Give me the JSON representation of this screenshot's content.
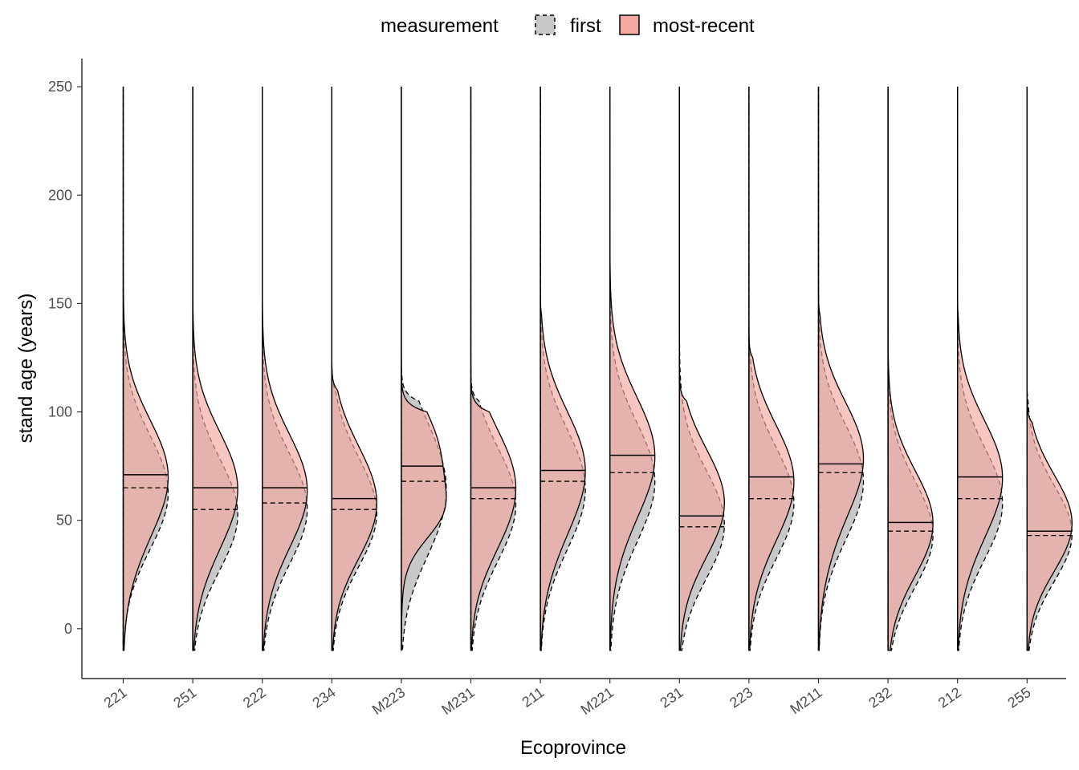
{
  "chart_data": {
    "type": "violin",
    "xlabel": "Ecoprovince",
    "ylabel": "stand age (years)",
    "ylim": [
      -23,
      263
    ],
    "y_ticks": [
      0,
      50,
      100,
      150,
      200,
      250
    ],
    "legend": {
      "title": "measurement",
      "placement": "top",
      "entries": [
        {
          "label": "first",
          "fill": "#c8c8c8",
          "linetype": "dashed"
        },
        {
          "label": "most-recent",
          "fill": "#f4a8a0",
          "linetype": "solid"
        }
      ]
    },
    "colors": {
      "first": "#c8c8c8",
      "most_recent": "#f4a8a0",
      "overlap": "#cf8a82"
    },
    "categories": [
      "221",
      "251",
      "222",
      "234",
      "M223",
      "M231",
      "211",
      "M221",
      "231",
      "223",
      "M211",
      "232",
      "212",
      "255"
    ],
    "series": [
      {
        "name": "first",
        "medians": [
          65,
          55,
          58,
          55,
          68,
          60,
          68,
          72,
          47,
          60,
          72,
          45,
          60,
          43
        ],
        "peaks": [
          [
            65,
            42,
            70,
            25,
            20,
            8
          ],
          [
            55,
            38,
            65,
            25,
            22,
            10
          ],
          [
            57,
            40,
            72,
            25,
            24,
            9
          ],
          [
            55,
            42,
            70,
            25,
            18,
            6
          ],
          [
            68,
            40,
            62,
            28,
            20,
            10
          ],
          [
            60,
            38,
            66,
            25,
            22,
            10
          ],
          [
            67,
            40,
            72,
            26,
            22,
            10
          ],
          [
            70,
            40,
            78,
            26,
            24,
            10
          ],
          [
            50,
            30,
            70,
            24,
            20,
            8
          ],
          [
            60,
            40,
            72,
            25,
            22,
            9
          ],
          [
            70,
            40,
            78,
            25,
            22,
            10
          ],
          [
            45,
            28,
            72,
            24,
            18,
            6
          ],
          [
            60,
            40,
            76,
            25,
            22,
            10
          ],
          [
            45,
            32,
            70,
            22,
            18,
            6
          ]
        ],
        "max_age": [
          205,
          150,
          170,
          110,
          105,
          105,
          145,
          180,
          140,
          125,
          150,
          140,
          150,
          105
        ]
      },
      {
        "name": "most-recent",
        "medians": [
          71,
          65,
          65,
          60,
          75,
          65,
          73,
          80,
          52,
          70,
          76,
          49,
          70,
          45
        ],
        "peaks": [
          [
            72,
            38,
            60,
            25,
            22,
            9
          ],
          [
            67,
            37,
            60,
            25,
            22,
            10
          ],
          [
            66,
            40,
            64,
            25,
            24,
            9
          ],
          [
            60,
            40,
            62,
            25,
            18,
            6
          ],
          [
            78,
            52,
            20,
            24,
            12,
            10
          ],
          [
            68,
            40,
            55,
            25,
            20,
            10
          ],
          [
            75,
            40,
            64,
            26,
            22,
            10
          ],
          [
            82,
            50,
            62,
            26,
            24,
            10
          ],
          [
            60,
            40,
            62,
            24,
            22,
            8
          ],
          [
            70,
            40,
            64,
            25,
            22,
            9
          ],
          [
            80,
            40,
            66,
            25,
            22,
            10
          ],
          [
            50,
            35,
            62,
            24,
            20,
            6
          ],
          [
            72,
            40,
            64,
            25,
            22,
            10
          ],
          [
            50,
            36,
            62,
            22,
            18,
            6
          ]
        ],
        "max_age": [
          175,
          150,
          165,
          110,
          100,
          100,
          145,
          175,
          105,
          125,
          145,
          140,
          145,
          95
        ]
      }
    ]
  }
}
